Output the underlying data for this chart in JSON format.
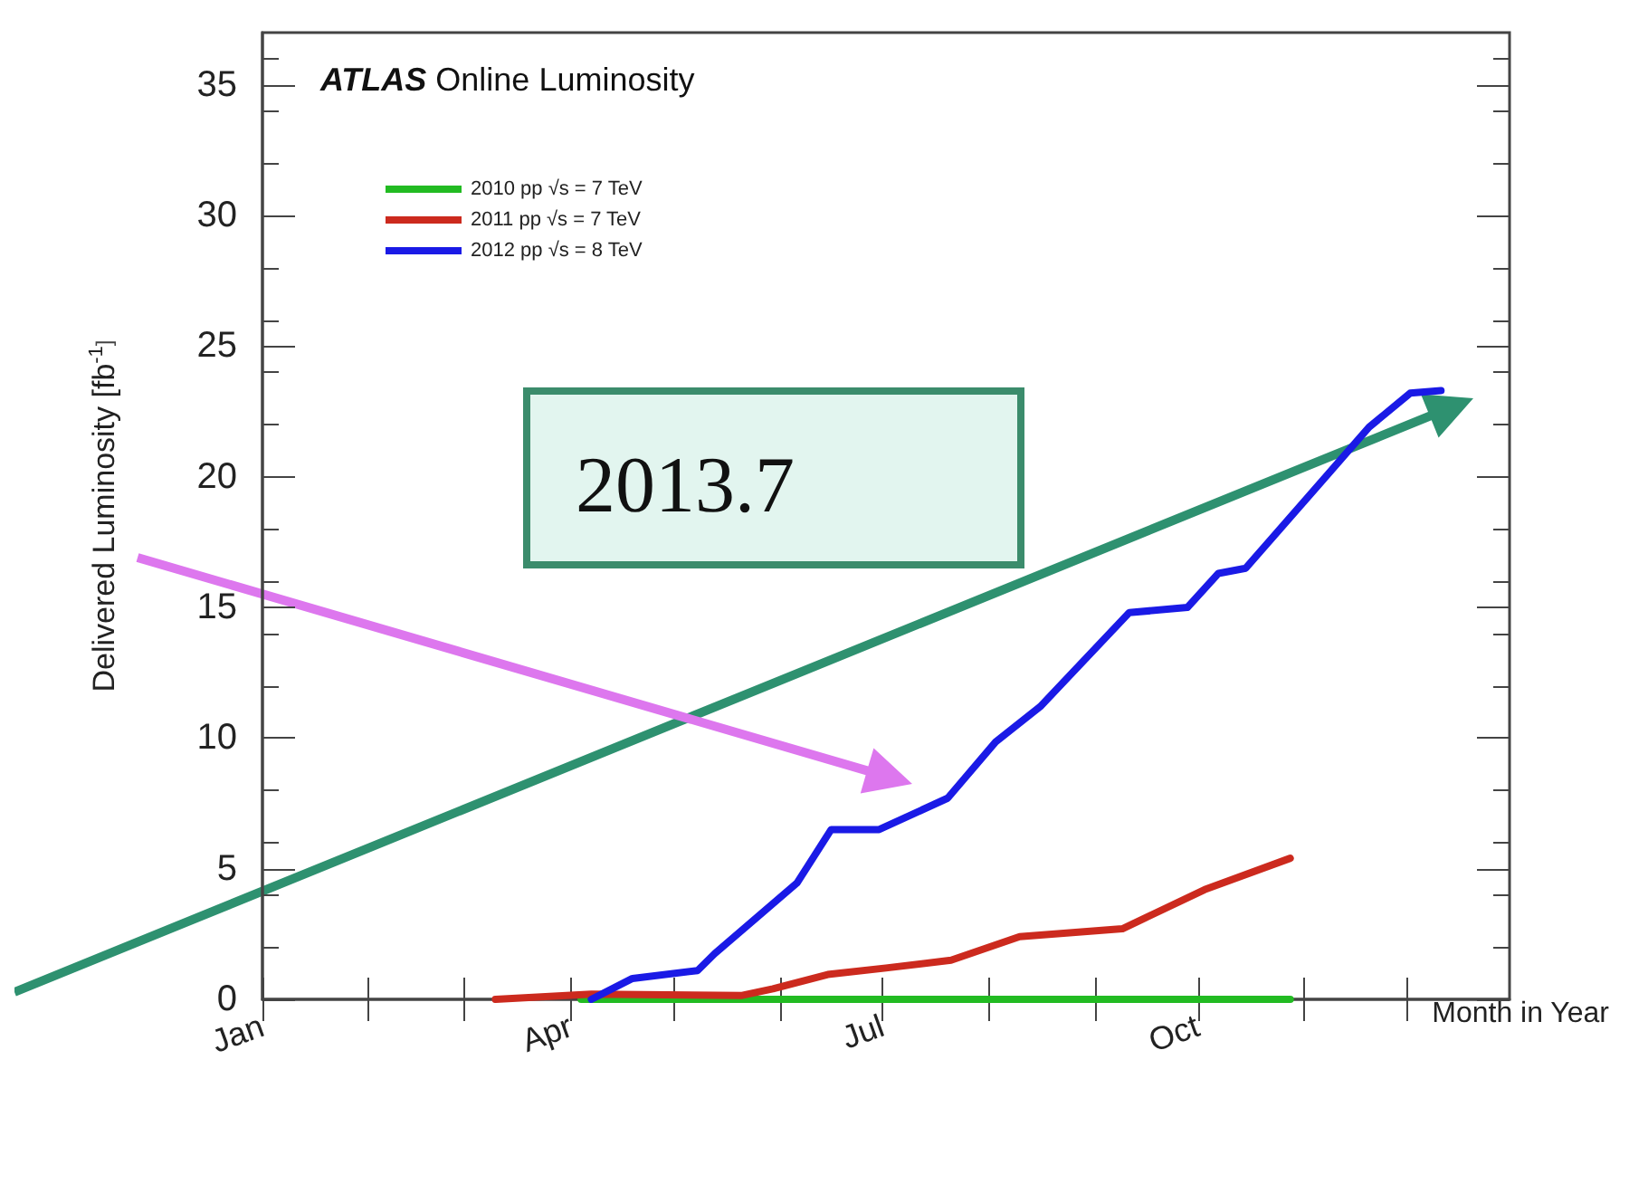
{
  "chart_data": {
    "type": "line",
    "title": "ATLAS Online Luminosity",
    "xlabel": "Month in Year",
    "ylabel": "Delivered Luminosity [fb$^{-1}$]",
    "annotations": [
      "2013.7"
    ],
    "xlim": [
      "--01-01",
      "--12-31"
    ],
    "xticks": [
      {
        "value": "--01-01",
        "label": "Jan"
      },
      {
        "value": "--02-01",
        "label": null
      },
      {
        "value": "--03-01",
        "label": null
      },
      {
        "value": "--04-01",
        "label": "Apr"
      },
      {
        "value": "--05-01",
        "label": null
      },
      {
        "value": "--06-01",
        "label": null
      },
      {
        "value": "--07-01",
        "label": "Jul"
      },
      {
        "value": "--08-01",
        "label": null
      },
      {
        "value": "--09-01",
        "label": null
      },
      {
        "value": "--10-01",
        "label": "Oct"
      },
      {
        "value": "--11-01",
        "label": null
      },
      {
        "value": "--12-01",
        "label": null
      }
    ],
    "ylim": [
      0,
      37
    ],
    "yticks": [
      0,
      5,
      10,
      15,
      20,
      25,
      30,
      35
    ],
    "legend": "top left",
    "grid": false,
    "marker": "none",
    "line_style": "solid",
    "series": [
      {
        "name": "2010 pp √s = 7 TeV",
        "color": "#22bb22",
        "x": [
          "--04-04",
          "--06-01",
          "--08-01",
          "--10-01",
          "--10-28"
        ],
        "values": [
          0,
          0,
          0,
          0,
          0
        ]
      },
      {
        "name": "2011 pp √s = 7 TeV",
        "color": "#cc2a1e",
        "x": [
          "--03-10",
          "--04-07",
          "--05-21",
          "--05-30",
          "--06-15",
          "--07-02",
          "--07-21",
          "--08-10",
          "--09-09",
          "--10-03",
          "--10-28"
        ],
        "values": [
          0,
          0.2,
          0.15,
          0.4,
          0.95,
          1.2,
          1.5,
          2.4,
          2.7,
          4.2,
          5.4
        ]
      },
      {
        "name": "2012 pp √s = 8 TeV",
        "color": "#1a1ae6",
        "x": [
          "--04-07",
          "--04-19",
          "--05-08",
          "--05-13",
          "--06-06",
          "--06-16",
          "--06-30",
          "--07-20",
          "--08-03",
          "--08-16",
          "--09-11",
          "--09-28",
          "--10-07",
          "--10-15",
          "--11-08",
          "--11-20",
          "--12-02",
          "--12-11"
        ],
        "values": [
          0,
          0.8,
          1.1,
          1.75,
          4.45,
          6.5,
          6.5,
          7.7,
          9.85,
          11.2,
          14.8,
          15,
          16.3,
          16.5,
          20.1,
          21.9,
          23.2,
          23.3
        ]
      }
    ]
  }
}
